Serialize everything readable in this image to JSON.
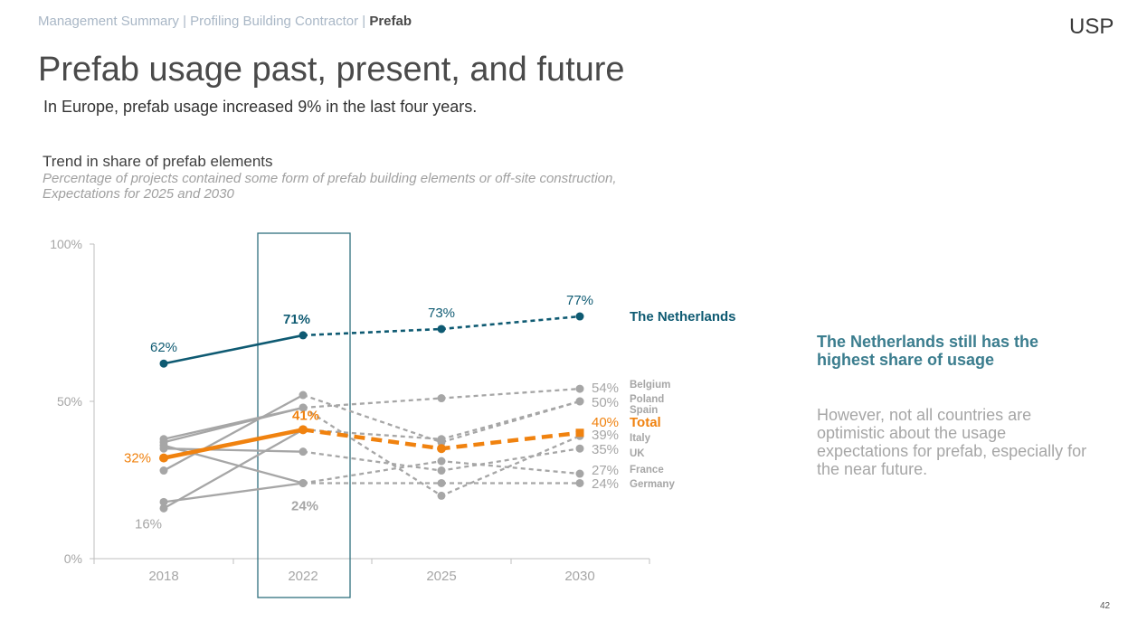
{
  "header": {
    "breadcrumb": [
      "Management Summary",
      "Profiling Building Contractor",
      "Prefab"
    ],
    "separator": "|",
    "logo": "USP"
  },
  "title": "Prefab usage past, present, and future",
  "subtitle": "In Europe, prefab usage increased 9% in the last four years.",
  "chart_data": {
    "type": "line",
    "title": "Trend in share of prefab elements",
    "description_lines": [
      "Percentage of projects contained some form of prefab building elements or off-site construction,",
      "Expectations for 2025 and 2030"
    ],
    "categories": [
      "2018",
      "2022",
      "2025",
      "2030"
    ],
    "y_ticks": [
      "0%",
      "50%",
      "100%"
    ],
    "ylim": [
      0,
      100
    ],
    "grid": false,
    "highlight_category": "2022",
    "note": "2025 and 2030 values are expectations (dashed)",
    "series": [
      {
        "name": "The Netherlands",
        "values": [
          62,
          71,
          73,
          77
        ],
        "color": "#0e5a72",
        "style": "highlight",
        "end_label": "77%",
        "point_labels": [
          "62%",
          "71%",
          "73%",
          "77%"
        ]
      },
      {
        "name": "Belgium",
        "values": [
          37,
          48,
          51,
          54
        ],
        "color": "#a6a6a6",
        "style": "country",
        "end_label": "54%"
      },
      {
        "name": "Poland",
        "values": [
          16,
          41,
          38,
          50
        ],
        "color": "#a6a6a6",
        "style": "country",
        "end_label": "50%"
      },
      {
        "name": "Spain",
        "values": [
          28,
          52,
          37,
          50
        ],
        "color": "#a6a6a6",
        "style": "country",
        "end_label": ""
      },
      {
        "name": "Total",
        "values": [
          32,
          41,
          35,
          40
        ],
        "color": "#f0820f",
        "style": "total",
        "end_label": "40%",
        "point_labels": [
          "32%",
          "41%",
          "",
          ""
        ]
      },
      {
        "name": "Italy",
        "values": [
          38,
          48,
          20,
          39
        ],
        "color": "#a6a6a6",
        "style": "country",
        "end_label": "39%"
      },
      {
        "name": "UK",
        "values": [
          35,
          34,
          28,
          35
        ],
        "color": "#a6a6a6",
        "style": "country",
        "end_label": "35%"
      },
      {
        "name": "France",
        "values": [
          36,
          24,
          31,
          27
        ],
        "color": "#a6a6a6",
        "style": "country",
        "end_label": "27%"
      },
      {
        "name": "Germany",
        "values": [
          18,
          24,
          24,
          24
        ],
        "color": "#a6a6a6",
        "style": "country",
        "end_label": "24%"
      }
    ],
    "annotations": [
      {
        "text": "16%",
        "category": "2018",
        "near_value": 16
      },
      {
        "text": "24%",
        "category": "2022",
        "near_value": 24
      }
    ]
  },
  "side_panel": {
    "heading": "The Netherlands still has the highest share of usage",
    "body": "However, not all countries are optimistic about the usage expectations for prefab, especially for the near future."
  },
  "page_number": "42",
  "colors": {
    "netherlands": "#0e5a72",
    "total": "#f0820f",
    "country": "#a6a6a6",
    "accent_text": "#3b7d8e",
    "highlight_box": "#2f6f7e"
  }
}
